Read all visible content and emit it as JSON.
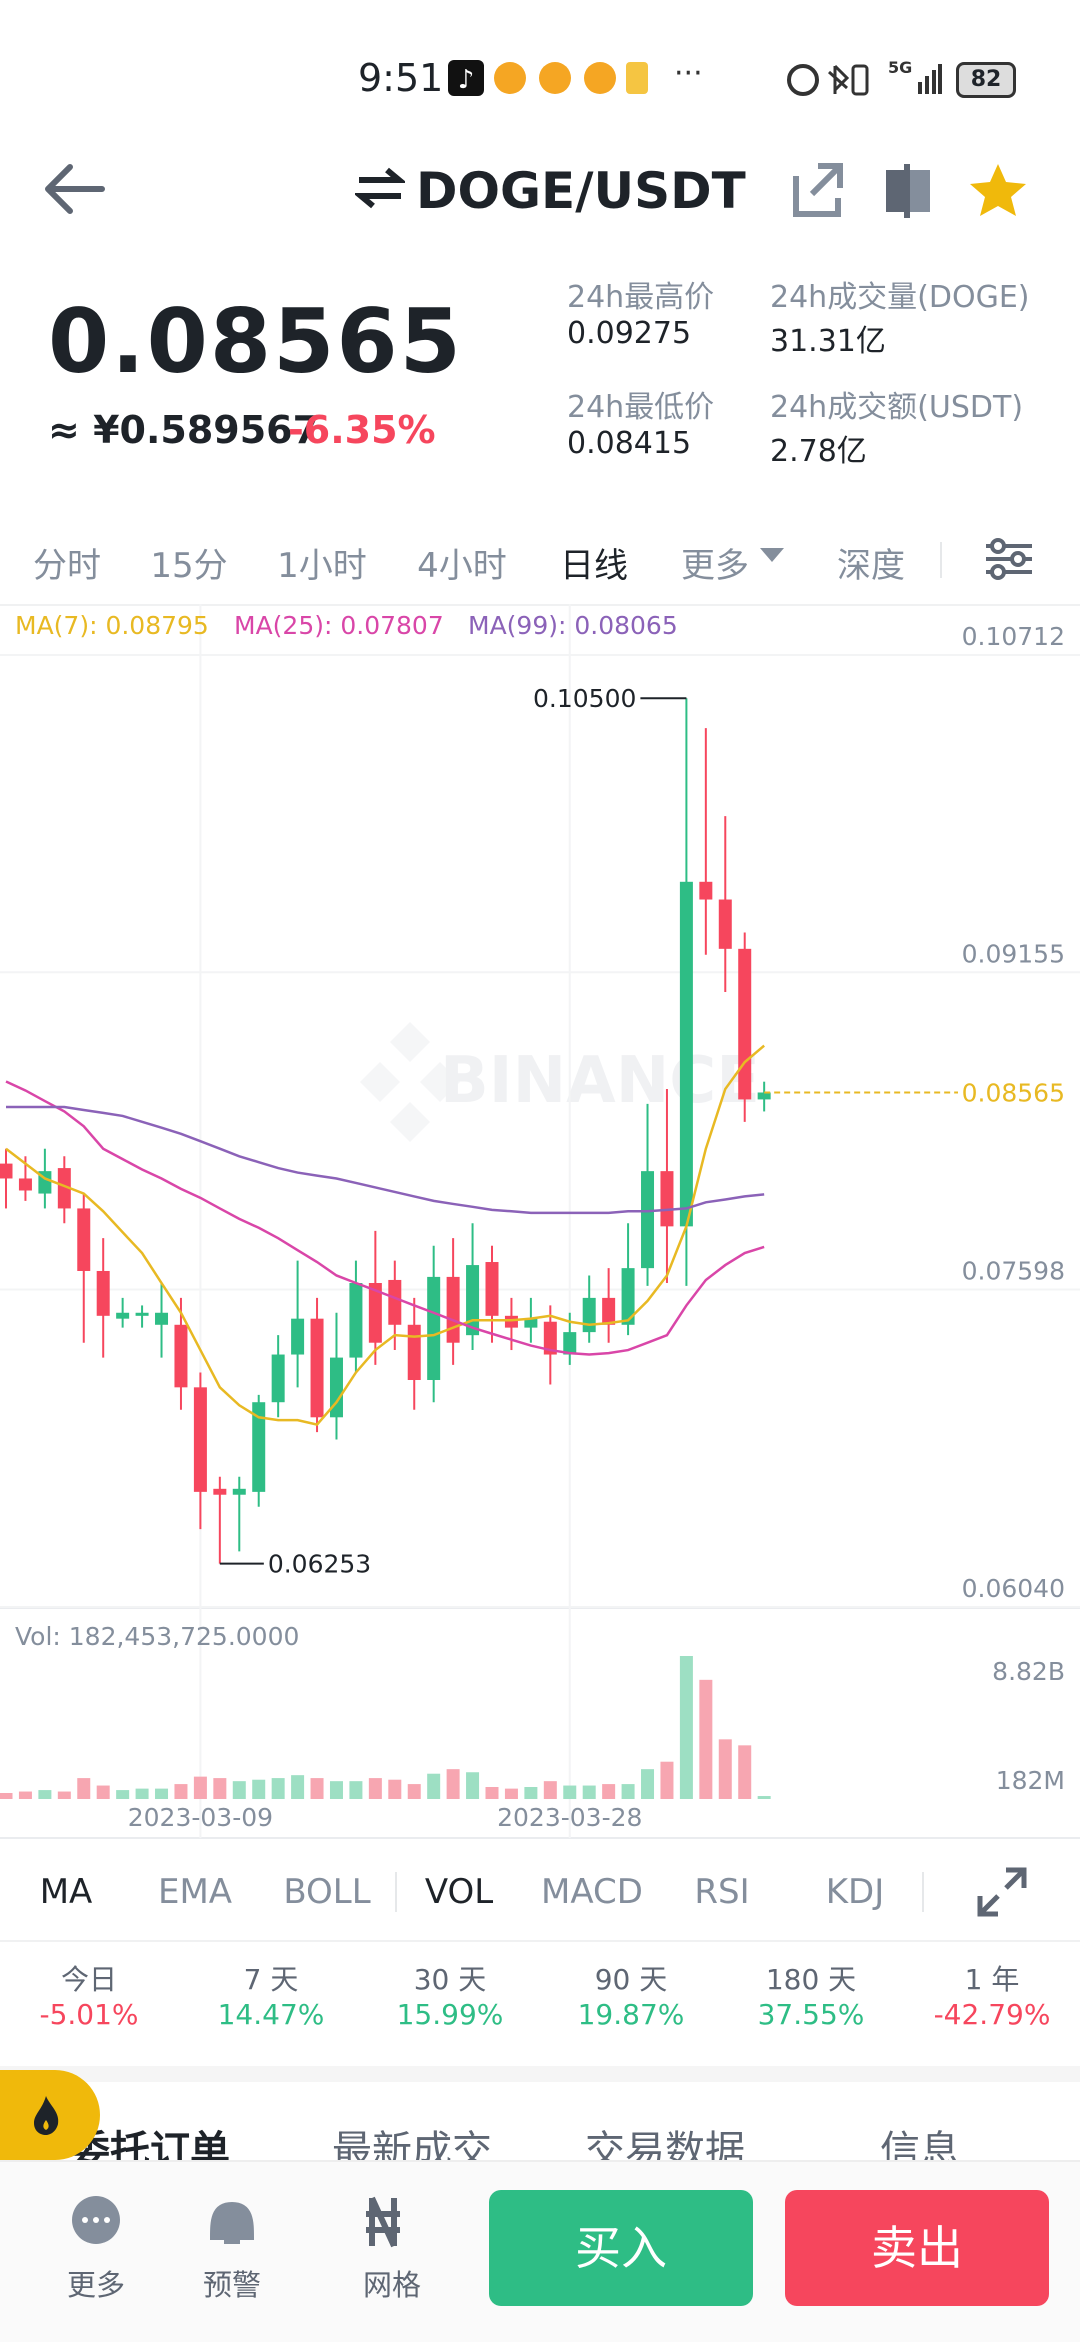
{
  "status": {
    "time": "9:51",
    "more": "···",
    "network": "5G",
    "battery": "82"
  },
  "header": {
    "title": "DOGE/USDT"
  },
  "ticker": {
    "price": "0.08565",
    "cny": "≈ ¥0.589567",
    "change": "-6.35%",
    "stats": [
      {
        "label": "24h最高价",
        "value": "0.09275"
      },
      {
        "label": "24h成交量(DOGE)",
        "value": "31.31亿"
      },
      {
        "label": "24h最低价",
        "value": "0.08415"
      },
      {
        "label": "24h成交额(USDT)",
        "value": "2.78亿"
      }
    ]
  },
  "intervals": [
    "分时",
    "15分",
    "1小时",
    "4小时",
    "日线",
    "更多",
    "深度"
  ],
  "chart": {
    "type": "candlestick",
    "watermark": "BINANCE",
    "up_color": "#2ebd85",
    "down_color": "#f6465d",
    "x": [
      null,
      null,
      null,
      null,
      null,
      null,
      null,
      null,
      null,
      null,
      "2023-03-09",
      null,
      null,
      null,
      null,
      null,
      null,
      null,
      null,
      null,
      null,
      null,
      null,
      null,
      null,
      null,
      null,
      null,
      null,
      "2023-03-28",
      null,
      null,
      null,
      null,
      null,
      null,
      null,
      null,
      null,
      null
    ],
    "candles": {
      "open": [
        0.08216,
        0.08143,
        0.08069,
        0.08194,
        0.07996,
        0.07689,
        0.07455,
        0.07469,
        0.07425,
        0.07425,
        0.07118,
        0.0662,
        0.06591,
        0.06605,
        0.07045,
        0.07279,
        0.07455,
        0.06971,
        0.07264,
        0.0763,
        0.07645,
        0.07425,
        0.07154,
        0.0766,
        0.07374,
        0.07733,
        0.07469,
        0.07411,
        0.0744,
        0.07279,
        0.07389,
        0.07557,
        0.07425,
        0.07703,
        0.08179,
        0.07908,
        0.09599,
        0.09512,
        0.0927,
        0.08531
      ],
      "high": [
        0.08289,
        0.08252,
        0.08289,
        0.08252,
        0.08069,
        0.0785,
        0.07557,
        0.0752,
        0.0763,
        0.07557,
        0.07191,
        0.06679,
        0.06679,
        0.07081,
        0.07374,
        0.0774,
        0.07557,
        0.07484,
        0.0774,
        0.07886,
        0.0774,
        0.07557,
        0.07813,
        0.0785,
        0.07923,
        0.07813,
        0.07557,
        0.07557,
        0.0752,
        0.07484,
        0.07667,
        0.07703,
        0.07923,
        0.08509,
        0.08582,
        0.105,
        0.10353,
        0.09921,
        0.0935,
        0.08618
      ],
      "low": [
        0.07996,
        0.08033,
        0.07996,
        0.07923,
        0.07337,
        0.07264,
        0.07411,
        0.07411,
        0.07264,
        0.07008,
        0.06422,
        0.06253,
        0.06313,
        0.06532,
        0.06971,
        0.07118,
        0.06898,
        0.06862,
        0.07191,
        0.07228,
        0.07301,
        0.07008,
        0.07045,
        0.07228,
        0.07301,
        0.07337,
        0.07301,
        0.07337,
        0.07132,
        0.07228,
        0.07337,
        0.07337,
        0.07374,
        0.07616,
        0.0763,
        0.07616,
        0.09241,
        0.09058,
        0.08421,
        0.08472
      ],
      "close": [
        0.08143,
        0.08084,
        0.08179,
        0.07996,
        0.07689,
        0.07469,
        0.07484,
        0.07484,
        0.07484,
        0.07118,
        0.06605,
        0.06591,
        0.0662,
        0.07045,
        0.07279,
        0.07455,
        0.06971,
        0.07264,
        0.0763,
        0.07337,
        0.07425,
        0.07154,
        0.0766,
        0.07337,
        0.07718,
        0.07469,
        0.07411,
        0.07455,
        0.07279,
        0.07389,
        0.07557,
        0.07425,
        0.07703,
        0.08179,
        0.07908,
        0.09599,
        0.09512,
        0.0927,
        0.08531,
        0.08565
      ]
    },
    "max_label": "0.10500",
    "min_label": "0.06253",
    "last_price": 0.08565,
    "ylim": [
      0.0604,
      0.10712
    ],
    "yticks": [
      0.10712,
      0.09155,
      0.07598,
      {
        "value": 0.0604,
        "label": "0.06040"
      }
    ],
    "grid": true,
    "ma": [
      {
        "name": "MA(7): 0.08795",
        "color": "#e8b923",
        "values": [
          0.08289,
          0.08216,
          0.08143,
          0.08106,
          0.08069,
          0.07982,
          0.07879,
          0.07777,
          0.0763,
          0.07484,
          0.07301,
          0.07118,
          0.0703,
          0.06971,
          0.06957,
          0.06957,
          0.06935,
          0.07045,
          0.07191,
          0.07301,
          0.07374,
          0.07367,
          0.07374,
          0.07411,
          0.07447,
          0.07447,
          0.07447,
          0.07455,
          0.07469,
          0.0744,
          0.07425,
          0.07433,
          0.07447,
          0.07542,
          0.07667,
          0.07908,
          0.08289,
          0.08582,
          0.08714,
          0.08795
        ]
      },
      {
        "name": "MA(25): 0.07807",
        "color": "#d946a8",
        "values": [
          0.08619,
          0.08575,
          0.08523,
          0.08472,
          0.08399,
          0.08289,
          0.08238,
          0.08187,
          0.08143,
          0.08092,
          0.08048,
          0.07996,
          0.07945,
          0.07901,
          0.0785,
          0.07791,
          0.07733,
          0.07667,
          0.0763,
          0.07594,
          0.07557,
          0.0752,
          0.07484,
          0.07447,
          0.07411,
          0.07381,
          0.07352,
          0.07323,
          0.07301,
          0.07286,
          0.07279,
          0.07286,
          0.07301,
          0.07337,
          0.07374,
          0.0752,
          0.07645,
          0.07718,
          0.07777,
          0.07807
        ]
      },
      {
        "name": "MA(99): 0.08065",
        "color": "#8b62b8",
        "values": [
          0.08494,
          0.08494,
          0.08494,
          0.08494,
          0.08479,
          0.08465,
          0.0845,
          0.08421,
          0.08392,
          0.08362,
          0.08326,
          0.08289,
          0.08252,
          0.08223,
          0.08194,
          0.08172,
          0.08157,
          0.08143,
          0.08121,
          0.08099,
          0.08077,
          0.08055,
          0.08033,
          0.08018,
          0.08004,
          0.07989,
          0.07982,
          0.07974,
          0.07974,
          0.07974,
          0.07974,
          0.07974,
          0.07982,
          0.07982,
          0.07989,
          0.07996,
          0.08026,
          0.0804,
          0.08055,
          0.08065
        ]
      }
    ],
    "volume": {
      "label": "Vol: 182,453,725.0000",
      "up_color": "#9ddfc3",
      "down_color": "#f7a6b1",
      "values": [
        370000000,
        460000000,
        550000000,
        460000000,
        1290000000,
        830000000,
        550000000,
        640000000,
        640000000,
        920000000,
        1380000000,
        1290000000,
        1100000000,
        1190000000,
        1290000000,
        1470000000,
        1290000000,
        1100000000,
        1100000000,
        1290000000,
        1190000000,
        920000000,
        1560000000,
        1840000000,
        1650000000,
        740000000,
        640000000,
        740000000,
        1100000000,
        830000000,
        830000000,
        920000000,
        920000000,
        1840000000,
        2300000000,
        8820000000,
        7350000000,
        3680000000,
        3310000000,
        182453725
      ],
      "ylim": [
        0,
        8820000000
      ],
      "yticks": [
        {
          "value": 8820000000,
          "label": "8.82B"
        },
        {
          "value": 182000000,
          "label": "182M"
        }
      ]
    }
  },
  "indicators": [
    "MA",
    "EMA",
    "BOLL",
    "VOL",
    "MACD",
    "RSI",
    "KDJ"
  ],
  "performance": [
    {
      "label": "今日",
      "value": "-5.01%"
    },
    {
      "label": "7 天",
      "value": "14.47%"
    },
    {
      "label": "30 天",
      "value": "15.99%"
    },
    {
      "label": "90 天",
      "value": "19.87%"
    },
    {
      "label": "180 天",
      "value": "37.55%"
    },
    {
      "label": "1 年",
      "value": "-42.79%"
    }
  ],
  "order_tabs": [
    "委托订单",
    "最新成交",
    "交易数据",
    "信息"
  ],
  "bottom_bar": {
    "nav": [
      "更多",
      "预警",
      "网格"
    ],
    "buy": "买入",
    "sell": "卖出"
  }
}
